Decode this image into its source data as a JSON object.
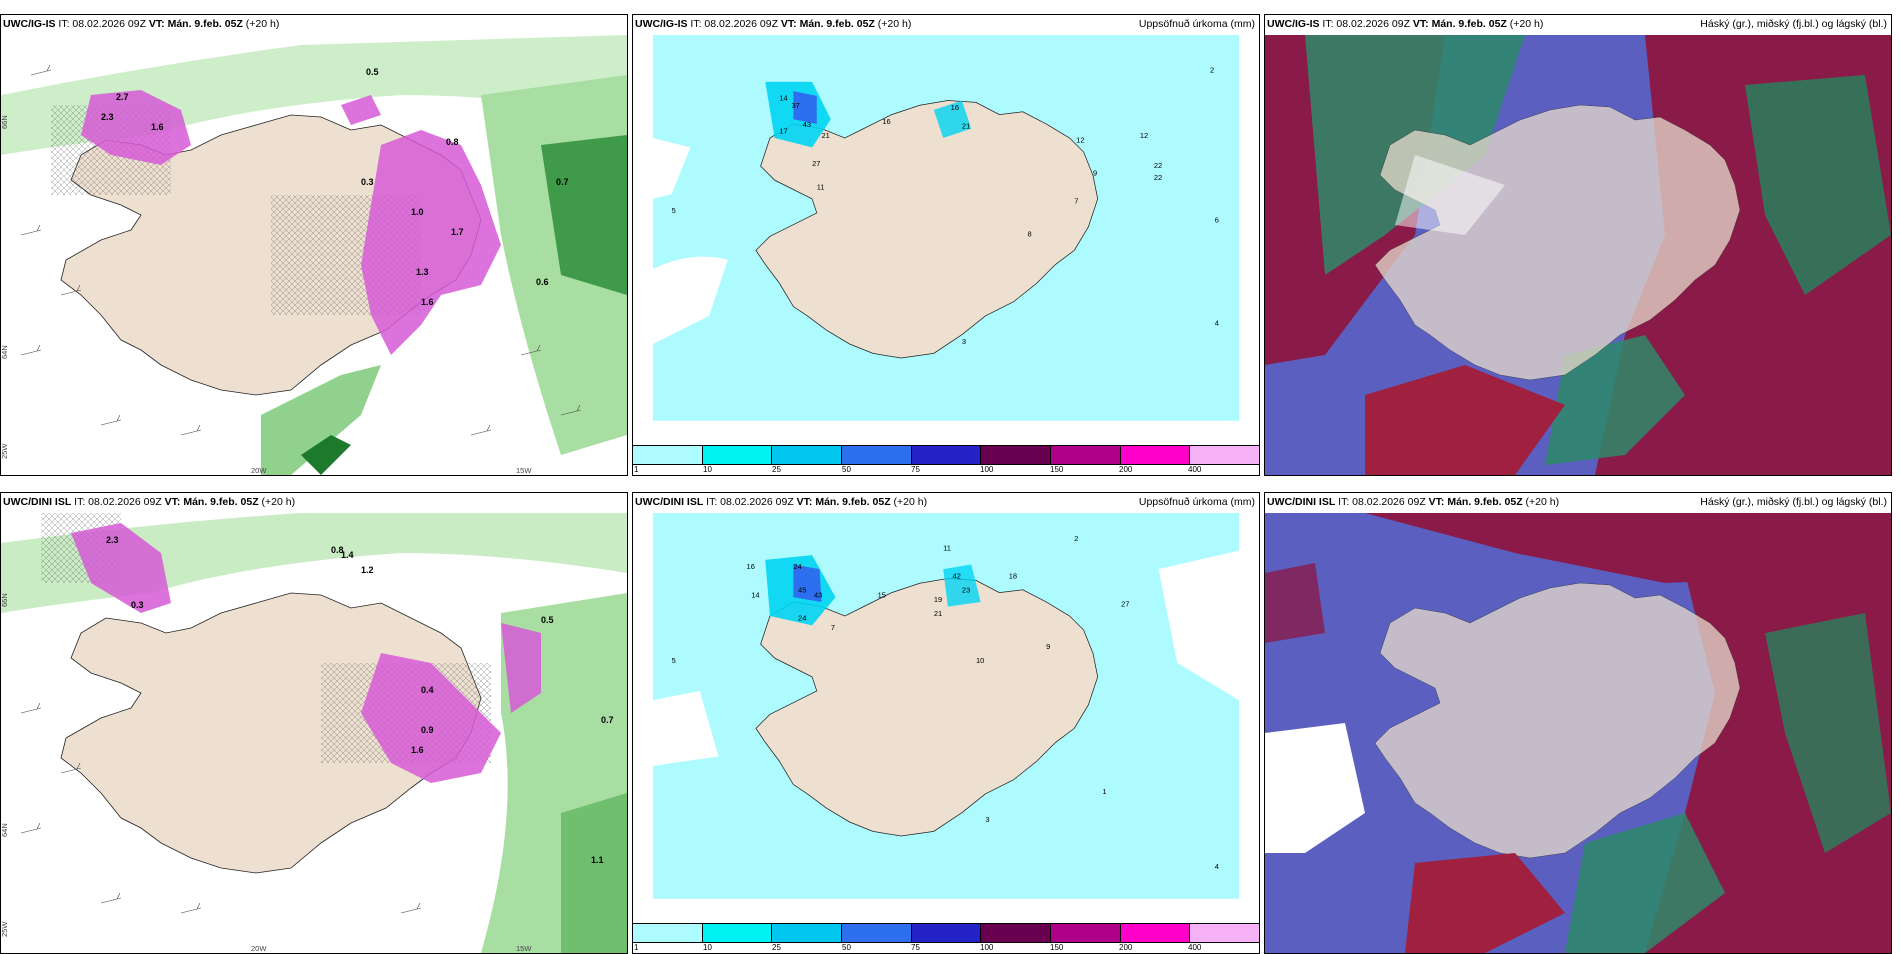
{
  "panels": {
    "top_left": {
      "model": "UWC/IG-IS",
      "it": "IT: 08.02.2026 09Z",
      "vt": "VT: Mán. 9.feb. 05Z",
      "lead": "(+20 h)",
      "right": ""
    },
    "top_mid": {
      "model": "UWC/IG-IS",
      "it": "IT: 08.02.2026 09Z",
      "vt": "VT: Mán. 9.feb. 05Z",
      "lead": "(+20 h)",
      "right": "Uppsöfnuð úrkoma (mm)"
    },
    "top_right": {
      "model": "UWC/IG-IS",
      "it": "IT: 08.02.2026 09Z",
      "vt": "VT: Mán. 9.feb. 05Z",
      "lead": "(+20 h)",
      "right": "Háský (gr.), miðský (fj.bl.) og lágský (bl.)"
    },
    "bot_left": {
      "model": "UWC/DINI ISL",
      "it": "IT: 08.02.2026 09Z",
      "vt": "VT: Mán. 9.feb. 05Z",
      "lead": "(+20 h)",
      "right": ""
    },
    "bot_mid": {
      "model": "UWC/DINI ISL",
      "it": "IT: 08.02.2026 09Z",
      "vt": "VT: Mán. 9.feb. 05Z",
      "lead": "(+20 h)",
      "right": "Uppsöfnuð úrkoma (mm)"
    },
    "bot_right": {
      "model": "UWC/DINI ISL",
      "it": "IT: 08.02.2026 09Z",
      "vt": "VT: Mán. 9.feb. 05Z",
      "lead": "(+20 h)",
      "right": "Háský (gr.), miðský (fj.bl.) og lágský (bl.)"
    }
  },
  "axis_labels": {
    "lat66": "66N",
    "lat64": "64N",
    "lon25": "25W",
    "lon20": "20W",
    "lon15": "15W"
  },
  "colorbar": {
    "colors": [
      "#aefbff",
      "#00f2f2",
      "#00c6f0",
      "#2e6ff0",
      "#2323c8",
      "#6a0050",
      "#b0008a",
      "#ff00c8",
      "#f7b2f7"
    ],
    "ticks": [
      "1",
      "10",
      "25",
      "50",
      "75",
      "100",
      "150",
      "200",
      "400"
    ]
  },
  "precip_values_top": [
    "14",
    "37",
    "43",
    "21",
    "16",
    "17",
    "27",
    "11",
    "12",
    "16",
    "22",
    "21",
    "12",
    "22",
    "8",
    "9",
    "7",
    "5",
    "3",
    "4",
    "2",
    "6"
  ],
  "precip_values_bot": [
    "16",
    "24",
    "45",
    "43",
    "14",
    "24",
    "15",
    "42",
    "18",
    "19",
    "23",
    "21",
    "27",
    "11",
    "10",
    "9",
    "7",
    "5",
    "3",
    "2",
    "1",
    "4"
  ],
  "snow_values_top": [
    "2.7",
    "1.6",
    "2.3",
    "1.0",
    "0.8",
    "1.3",
    "0.5",
    "0.7",
    "1.6",
    "1.7",
    "0.6",
    "0.3"
  ],
  "snow_values_bot": [
    "2.3",
    "1.4",
    "1.2",
    "0.8",
    "0.4",
    "0.7",
    "0.9",
    "1.1",
    "1.6",
    "0.5",
    "0.3"
  ]
}
